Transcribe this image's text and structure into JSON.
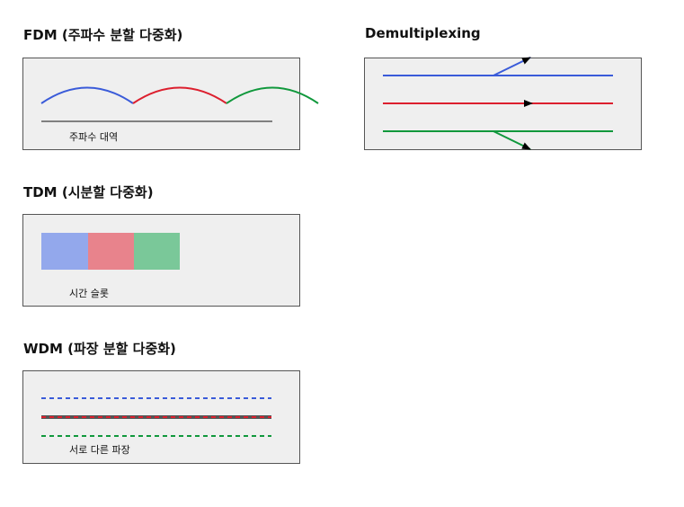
{
  "fdm": {
    "title": "FDM (주파수 분할 다중화)",
    "axis_label": "주파수 대역"
  },
  "tdm": {
    "title": "TDM (시분할 다중화)",
    "caption": "시간 슬롯"
  },
  "wdm": {
    "title": "WDM (파장 분할 다중화)",
    "caption": "서로 다른 파장"
  },
  "demux": {
    "title": "Demultiplexing"
  },
  "colors": {
    "blue": "#3a5bd9",
    "red": "#dc1f2e",
    "green": "#10983c",
    "blue_fill": "#93a8ec",
    "red_fill": "#e8838c",
    "green_fill": "#7ac899"
  }
}
